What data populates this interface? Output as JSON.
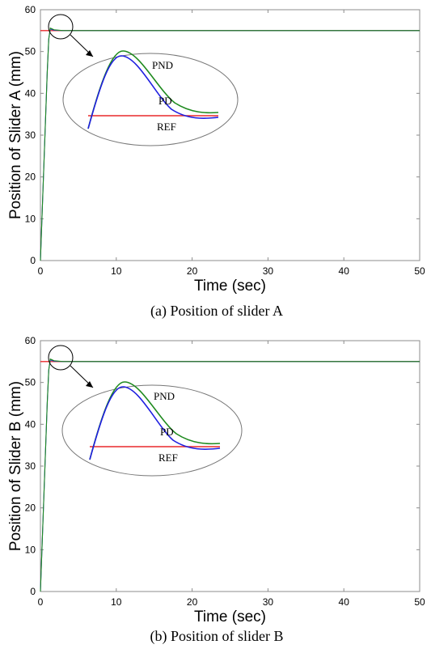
{
  "colors": {
    "ref": "#e8292b",
    "pd": "#1f1fe0",
    "pnd": "#1e8a1e",
    "axes": "#8c8c8c"
  },
  "chart_data": [
    {
      "type": "line",
      "caption": "(a)   Position of slider A",
      "xlabel": "Time (sec)",
      "ylabel": "Position of Slider A (mm)",
      "xlim": [
        0,
        50
      ],
      "ylim": [
        0,
        60
      ],
      "xticks": [
        "0",
        "10",
        "20",
        "30",
        "40",
        "50"
      ],
      "yticks": [
        "0",
        "10",
        "20",
        "30",
        "40",
        "50",
        "60"
      ],
      "series": [
        {
          "name": "REF",
          "color": "#e8292b",
          "x": [
            0,
            50
          ],
          "y": [
            55,
            55
          ]
        },
        {
          "name": "PD",
          "color": "#1f1fe0",
          "x": [
            0,
            0.3,
            0.6,
            0.9,
            1.1,
            1.3,
            1.8,
            3,
            50
          ],
          "y": [
            0,
            15,
            30,
            45,
            53,
            55.4,
            55.1,
            55,
            55
          ]
        },
        {
          "name": "PND",
          "color": "#1e8a1e",
          "x": [
            0,
            0.3,
            0.6,
            0.9,
            1.1,
            1.3,
            1.8,
            3,
            50
          ],
          "y": [
            0,
            15,
            30,
            45,
            53,
            55.6,
            55.2,
            55,
            55
          ]
        }
      ],
      "inset_labels": [
        "PND",
        "PD",
        "REF"
      ]
    },
    {
      "type": "line",
      "caption": "(b)   Position of slider B",
      "xlabel": "Time (sec)",
      "ylabel": "Position of Slider B (mm)",
      "xlim": [
        0,
        50
      ],
      "ylim": [
        0,
        60
      ],
      "xticks": [
        "0",
        "10",
        "20",
        "30",
        "40",
        "50"
      ],
      "yticks": [
        "0",
        "10",
        "20",
        "30",
        "40",
        "50",
        "60"
      ],
      "series": [
        {
          "name": "REF",
          "color": "#e8292b",
          "x": [
            0,
            50
          ],
          "y": [
            55,
            55
          ]
        },
        {
          "name": "PD",
          "color": "#1f1fe0",
          "x": [
            0,
            0.3,
            0.6,
            0.9,
            1.1,
            1.3,
            1.8,
            3,
            50
          ],
          "y": [
            0,
            15,
            30,
            45,
            53,
            55.4,
            55.1,
            55,
            55
          ]
        },
        {
          "name": "PND",
          "color": "#1e8a1e",
          "x": [
            0,
            0.3,
            0.6,
            0.9,
            1.1,
            1.3,
            1.8,
            3,
            50
          ],
          "y": [
            0,
            15,
            30,
            45,
            53,
            55.6,
            55.2,
            55,
            55
          ]
        }
      ],
      "inset_labels": [
        "PND",
        "PD",
        "REF"
      ]
    }
  ]
}
